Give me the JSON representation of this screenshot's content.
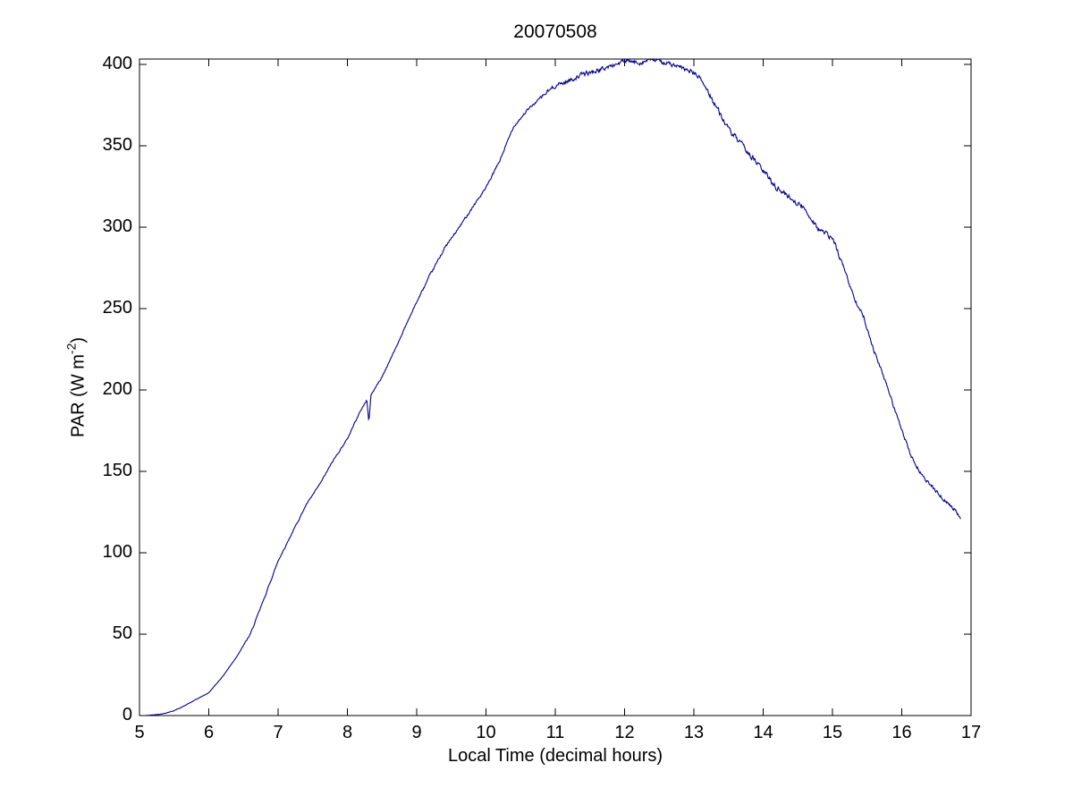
{
  "figure": {
    "title": "20070508",
    "xlabel": "Local Time (decimal hours)",
    "ylabel_prefix": "PAR (W m",
    "ylabel_sup": "-2",
    "ylabel_suffix": ")"
  },
  "chart_data": {
    "type": "line",
    "title": "20070508",
    "xlabel": "Local Time (decimal hours)",
    "ylabel": "PAR (W m^-2)",
    "grid": false,
    "legend": "none",
    "box": true,
    "tick_direction": "in",
    "xlim": [
      5,
      17
    ],
    "ylim": [
      0,
      403.3
    ],
    "xticks": [
      5,
      6,
      7,
      8,
      9,
      10,
      11,
      12,
      13,
      14,
      15,
      16,
      17
    ],
    "yticks": [
      0,
      50,
      100,
      150,
      200,
      250,
      300,
      350,
      400
    ],
    "line_color": "#00008B",
    "axis_color": "#000000",
    "background_color": "#ffffff",
    "series": [
      {
        "name": "PAR",
        "x": [
          5.09,
          5.2,
          5.35,
          5.5,
          5.65,
          5.8,
          6.0,
          6.2,
          6.4,
          6.6,
          6.8,
          7.0,
          7.2,
          7.4,
          7.6,
          7.8,
          8.0,
          8.15,
          8.28,
          8.31,
          8.34,
          8.5,
          8.7,
          8.9,
          9.0,
          9.2,
          9.4,
          9.6,
          9.8,
          10.0,
          10.2,
          10.4,
          10.6,
          10.8,
          11.0,
          11.2,
          11.4,
          11.6,
          11.8,
          12.0,
          12.2,
          12.4,
          12.6,
          12.8,
          13.0,
          13.1,
          13.3,
          13.5,
          13.7,
          13.9,
          14.05,
          14.2,
          14.4,
          14.6,
          14.8,
          15.0,
          15.15,
          15.3,
          15.45,
          15.6,
          15.75,
          15.9,
          16.0,
          16.15,
          16.3,
          16.45,
          16.6,
          16.7,
          16.78,
          16.85
        ],
        "y": [
          0,
          0.4,
          1.2,
          3,
          6,
          9.5,
          14,
          24,
          36,
          50,
          72,
          95,
          112,
          129,
          142,
          157,
          170,
          184,
          194,
          180,
          197,
          208,
          226,
          245,
          254,
          271,
          287,
          299,
          312,
          324,
          341,
          362,
          372,
          380,
          387,
          390,
          394,
          396,
          399,
          402,
          401,
          403,
          401,
          398,
          395,
          391,
          376,
          360,
          350,
          340,
          332,
          324,
          318,
          311,
          299,
          293,
          277,
          258,
          245,
          224,
          207,
          188,
          175,
          158,
          147,
          140,
          133,
          129,
          126,
          121
        ]
      }
    ]
  }
}
